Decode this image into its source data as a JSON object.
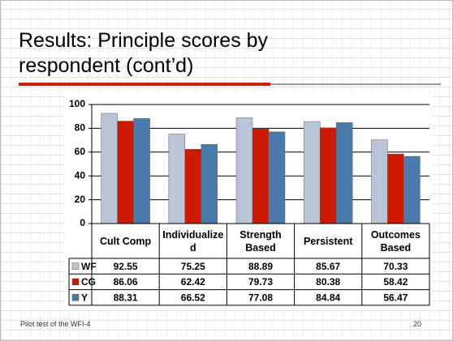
{
  "title": "Results: Principle scores by respondent (cont’d)",
  "footer": "Pilot test of the WFI-4",
  "page_number": "20",
  "chart_data": {
    "type": "bar",
    "categories": [
      "Cult Comp",
      "Individualized",
      "Strength Based",
      "Persistent",
      "Outcomes Based"
    ],
    "series": [
      {
        "name": "WF",
        "color": "#b9c5d6",
        "values": [
          92.55,
          75.25,
          88.89,
          85.67,
          70.33
        ]
      },
      {
        "name": "CG",
        "color": "#cc1a00",
        "values": [
          86.06,
          62.42,
          79.73,
          80.38,
          58.42
        ]
      },
      {
        "name": "Y",
        "color": "#4a7aab",
        "values": [
          88.31,
          66.52,
          77.08,
          84.84,
          56.47
        ]
      }
    ],
    "ylim": [
      0,
      100
    ],
    "yticks": [
      0,
      20,
      40,
      60,
      80,
      100
    ],
    "grid": true,
    "data_table": true
  }
}
